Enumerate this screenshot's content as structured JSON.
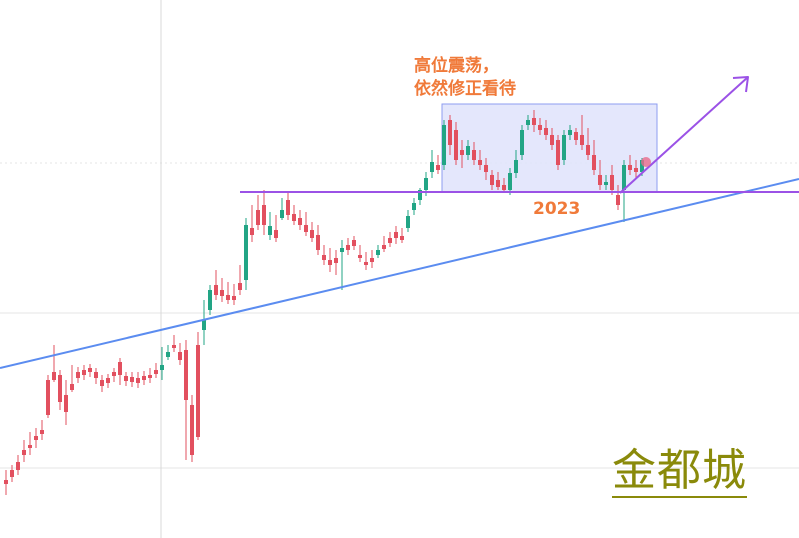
{
  "annotation": {
    "line1": "高位震荡，",
    "line2": "依然修正看待"
  },
  "year_label": "2023",
  "watermark": "金都城",
  "colors": {
    "up": "#22a585",
    "down": "#e2505f",
    "support_line": "#5b8cf0",
    "resistance_line": "#9b52e6",
    "range_box_fill": "#dfe3fb",
    "range_box_stroke": "#8e9cf0",
    "arrow": "#9b52e6",
    "text_orange": "#f07a3a",
    "watermark": "#8a8a0a"
  },
  "chart_data": {
    "type": "candlestick",
    "title": "",
    "xlabel": "",
    "ylabel": "",
    "ylim": [
      0,
      538
    ],
    "y_direction": "inverted",
    "grid": "horizontal + one vertical line",
    "candles": [
      [
        6,
        480,
        470,
        484,
        495
      ],
      [
        12,
        470,
        465,
        477,
        482
      ],
      [
        18,
        462,
        455,
        470,
        475
      ],
      [
        24,
        450,
        440,
        455,
        462
      ],
      [
        30,
        445,
        432,
        448,
        455
      ],
      [
        36,
        436,
        428,
        440,
        448
      ],
      [
        42,
        430,
        420,
        434,
        440
      ],
      [
        48,
        380,
        375,
        415,
        418
      ],
      [
        54,
        372,
        345,
        380,
        382
      ],
      [
        60,
        375,
        370,
        402,
        410
      ],
      [
        66,
        395,
        380,
        412,
        425
      ],
      [
        72,
        384,
        365,
        390,
        392
      ],
      [
        78,
        372,
        367,
        378,
        383
      ],
      [
        84,
        370,
        365,
        375,
        380
      ],
      [
        90,
        368,
        364,
        372,
        377
      ],
      [
        96,
        372,
        368,
        378,
        384
      ],
      [
        102,
        380,
        375,
        386,
        392
      ],
      [
        108,
        378,
        374,
        383,
        388
      ],
      [
        114,
        372,
        368,
        376,
        382
      ],
      [
        120,
        362,
        358,
        375,
        385
      ],
      [
        126,
        376,
        372,
        381,
        386
      ],
      [
        132,
        377,
        372,
        382,
        387
      ],
      [
        138,
        378,
        372,
        383,
        388
      ],
      [
        144,
        376,
        371,
        380,
        385
      ],
      [
        150,
        375,
        368,
        378,
        383
      ],
      [
        156,
        370,
        363,
        374,
        378
      ],
      [
        162,
        370,
        347,
        365,
        380
      ],
      [
        168,
        357,
        345,
        352,
        360
      ],
      [
        174,
        345,
        335,
        348,
        352
      ],
      [
        180,
        352,
        343,
        360,
        365
      ],
      [
        186,
        350,
        340,
        400,
        460
      ],
      [
        192,
        405,
        395,
        455,
        462
      ],
      [
        198,
        345,
        332,
        437,
        440
      ],
      [
        204,
        330,
        300,
        320,
        345
      ],
      [
        210,
        310,
        285,
        290,
        315
      ],
      [
        216,
        285,
        270,
        295,
        300
      ],
      [
        222,
        290,
        278,
        296,
        302
      ],
      [
        228,
        295,
        282,
        300,
        304
      ],
      [
        234,
        296,
        284,
        300,
        305
      ],
      [
        240,
        283,
        265,
        290,
        295
      ],
      [
        246,
        280,
        218,
        225,
        290
      ],
      [
        252,
        228,
        205,
        235,
        242
      ],
      [
        258,
        210,
        195,
        225,
        230
      ],
      [
        264,
        205,
        190,
        225,
        235
      ],
      [
        270,
        235,
        212,
        226,
        240
      ],
      [
        276,
        230,
        215,
        238,
        242
      ],
      [
        282,
        218,
        198,
        210,
        220
      ],
      [
        288,
        200,
        192,
        215,
        220
      ],
      [
        294,
        214,
        205,
        221,
        225
      ],
      [
        300,
        218,
        210,
        225,
        230
      ],
      [
        306,
        225,
        212,
        232,
        236
      ],
      [
        312,
        230,
        222,
        238,
        242
      ],
      [
        318,
        235,
        225,
        250,
        255
      ],
      [
        324,
        255,
        245,
        260,
        265
      ],
      [
        330,
        260,
        248,
        265,
        272
      ],
      [
        336,
        258,
        250,
        263,
        275
      ],
      [
        342,
        252,
        240,
        248,
        290
      ],
      [
        348,
        245,
        238,
        250,
        255
      ],
      [
        354,
        240,
        236,
        246,
        250
      ],
      [
        360,
        255,
        245,
        258,
        262
      ],
      [
        366,
        262,
        252,
        265,
        270
      ],
      [
        372,
        258,
        250,
        262,
        268
      ],
      [
        378,
        255,
        245,
        250,
        258
      ],
      [
        384,
        245,
        236,
        249,
        252
      ],
      [
        390,
        238,
        232,
        243,
        247
      ],
      [
        396,
        232,
        226,
        238,
        244
      ],
      [
        402,
        236,
        228,
        240,
        243
      ],
      [
        408,
        228,
        210,
        216,
        232
      ],
      [
        414,
        210,
        198,
        203,
        215
      ],
      [
        420,
        200,
        188,
        190,
        205
      ],
      [
        426,
        190,
        172,
        178,
        196
      ],
      [
        432,
        172,
        150,
        162,
        178
      ],
      [
        438,
        165,
        155,
        170,
        174
      ],
      [
        444,
        165,
        120,
        125,
        170
      ],
      [
        450,
        120,
        115,
        145,
        155
      ],
      [
        456,
        130,
        122,
        160,
        165
      ],
      [
        462,
        150,
        140,
        155,
        168
      ],
      [
        468,
        155,
        140,
        146,
        160
      ],
      [
        474,
        150,
        142,
        160,
        165
      ],
      [
        480,
        160,
        150,
        165,
        170
      ],
      [
        486,
        165,
        158,
        172,
        180
      ],
      [
        492,
        175,
        170,
        185,
        190
      ],
      [
        498,
        180,
        172,
        187,
        190
      ],
      [
        504,
        185,
        178,
        190,
        193
      ],
      [
        510,
        190,
        168,
        173,
        195
      ],
      [
        516,
        173,
        150,
        160,
        178
      ],
      [
        522,
        155,
        125,
        130,
        160
      ],
      [
        528,
        125,
        115,
        120,
        130
      ],
      [
        534,
        118,
        110,
        125,
        132
      ],
      [
        540,
        125,
        118,
        130,
        135
      ],
      [
        546,
        128,
        120,
        135,
        140
      ],
      [
        552,
        135,
        128,
        145,
        150
      ],
      [
        558,
        140,
        135,
        165,
        170
      ],
      [
        564,
        160,
        130,
        135,
        165
      ],
      [
        570,
        135,
        125,
        130,
        140
      ],
      [
        576,
        132,
        128,
        140,
        145
      ],
      [
        582,
        135,
        115,
        145,
        150
      ],
      [
        588,
        145,
        128,
        155,
        160
      ],
      [
        594,
        155,
        140,
        170,
        175
      ],
      [
        600,
        175,
        160,
        185,
        190
      ],
      [
        606,
        185,
        175,
        182,
        190
      ],
      [
        612,
        175,
        165,
        190,
        195
      ],
      [
        618,
        195,
        185,
        205,
        210
      ],
      [
        624,
        190,
        160,
        165,
        222
      ],
      [
        630,
        165,
        155,
        170,
        175
      ],
      [
        636,
        168,
        160,
        172,
        178
      ],
      [
        642,
        172,
        158,
        160,
        176
      ]
    ],
    "support_line": [
      [
        0,
        368
      ],
      [
        799,
        179
      ]
    ],
    "resistance_line": [
      [
        240,
        192
      ],
      [
        799,
        192
      ]
    ],
    "range_box": [
      [
        442,
        104
      ],
      [
        657,
        192
      ]
    ],
    "arrow": [
      [
        620,
        193
      ],
      [
        748,
        77
      ]
    ],
    "price_line_y": 163,
    "grid_y": [
      163,
      313,
      468
    ],
    "grid_x": [
      161
    ]
  }
}
